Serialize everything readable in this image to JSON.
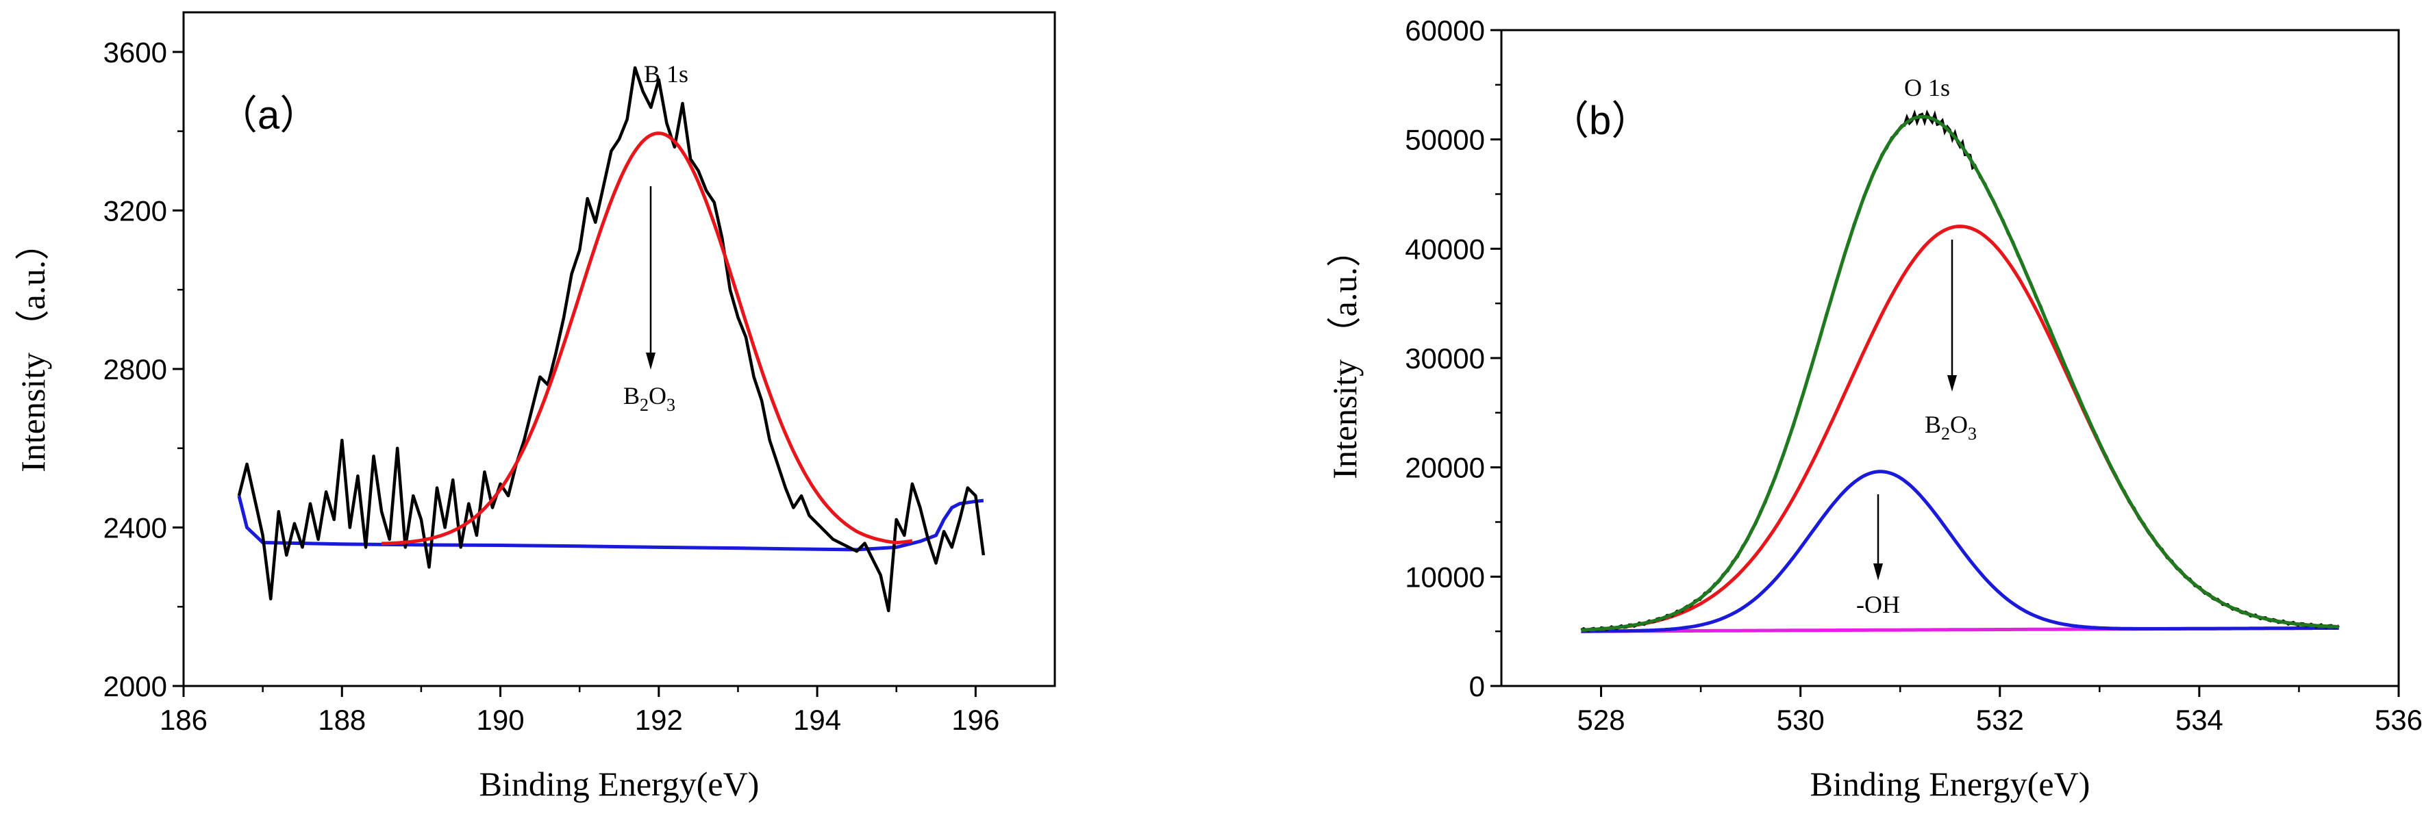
{
  "chart_data": [
    {
      "type": "line",
      "panel_label": "（a）",
      "xlabel": "Binding Energy(eV)",
      "ylabel": "Intensity （a.u.）",
      "xlim": [
        186,
        197
      ],
      "ylim": [
        2000,
        3700
      ],
      "x_ticks": [
        "186",
        "188",
        "190",
        "192",
        "194",
        "196"
      ],
      "y_ticks": [
        "2000",
        "2400",
        "2800",
        "3200",
        "3600"
      ],
      "grid": false,
      "series": [
        {
          "role": "raw",
          "color": "#000000",
          "x": [
            186.7,
            186.8,
            186.9,
            187.0,
            187.1,
            187.2,
            187.3,
            187.4,
            187.5,
            187.6,
            187.7,
            187.8,
            187.9,
            188.0,
            188.1,
            188.2,
            188.3,
            188.4,
            188.5,
            188.6,
            188.7,
            188.8,
            188.9,
            189.0,
            189.1,
            189.2,
            189.3,
            189.4,
            189.5,
            189.6,
            189.7,
            189.8,
            189.9,
            190.0,
            190.1,
            190.2,
            190.3,
            190.4,
            190.5,
            190.6,
            190.7,
            190.8,
            190.9,
            191.0,
            191.1,
            191.2,
            191.3,
            191.4,
            191.5,
            191.6,
            191.7,
            191.8,
            191.9,
            192.0,
            192.1,
            192.2,
            192.3,
            192.4,
            192.5,
            192.6,
            192.7,
            192.8,
            192.9,
            193.0,
            193.1,
            193.2,
            193.3,
            193.4,
            193.5,
            193.6,
            193.7,
            193.8,
            193.9,
            194.0,
            194.1,
            194.2,
            194.3,
            194.4,
            194.5,
            194.6,
            194.7,
            194.8,
            194.9,
            195.0,
            195.1,
            195.2,
            195.3,
            195.4,
            195.5,
            195.6,
            195.7,
            195.8,
            195.9,
            196.0,
            196.1
          ],
          "y": [
            2480,
            2560,
            2470,
            2380,
            2220,
            2440,
            2330,
            2410,
            2350,
            2460,
            2370,
            2490,
            2420,
            2620,
            2400,
            2530,
            2350,
            2580,
            2440,
            2370,
            2600,
            2350,
            2480,
            2420,
            2300,
            2500,
            2400,
            2520,
            2350,
            2460,
            2380,
            2540,
            2450,
            2510,
            2480,
            2560,
            2620,
            2700,
            2780,
            2760,
            2840,
            2930,
            3040,
            3100,
            3230,
            3170,
            3260,
            3350,
            3380,
            3430,
            3560,
            3500,
            3460,
            3530,
            3420,
            3360,
            3470,
            3330,
            3300,
            3250,
            3220,
            3130,
            3000,
            2930,
            2880,
            2780,
            2720,
            2620,
            2560,
            2500,
            2450,
            2480,
            2430,
            2410,
            2390,
            2370,
            2360,
            2350,
            2340,
            2360,
            2320,
            2280,
            2190,
            2420,
            2380,
            2510,
            2450,
            2370,
            2310,
            2390,
            2350,
            2420,
            2500,
            2480,
            2330
          ]
        },
        {
          "role": "fit",
          "color": "#e8161b",
          "gaussian": {
            "center": 192.0,
            "sigma": 1.0,
            "amplitude": 1045
          },
          "x_range": [
            188.5,
            195.2
          ]
        },
        {
          "role": "background",
          "color": "#1a1adb",
          "x": [
            186.7,
            186.8,
            187.0,
            187.5,
            188.0,
            189.0,
            190.0,
            191.0,
            192.0,
            193.0,
            194.0,
            194.5,
            195.0,
            195.3,
            195.5,
            195.6,
            195.7,
            195.8,
            196.0,
            196.1
          ],
          "y": [
            2480,
            2400,
            2362,
            2360,
            2358,
            2356,
            2355,
            2353,
            2350,
            2348,
            2345,
            2344,
            2350,
            2365,
            2380,
            2420,
            2450,
            2460,
            2466,
            2468
          ]
        }
      ],
      "annotations": {
        "peak": "B 1s",
        "species": "B2O3"
      }
    },
    {
      "type": "line",
      "panel_label": "（b）",
      "xlabel": "Binding Energy(eV)",
      "ylabel": "Intensity （a.u.）",
      "xlim": [
        527,
        536
      ],
      "ylim": [
        0,
        60000
      ],
      "x_ticks": [
        "528",
        "530",
        "532",
        "534",
        "536"
      ],
      "y_ticks": [
        "0",
        "10000",
        "20000",
        "30000",
        "40000",
        "50000",
        "60000"
      ],
      "grid": false,
      "series": [
        {
          "role": "envelope",
          "color": "#1f7a1f",
          "components": [
            "B2O3",
            "-OH"
          ],
          "x_range": [
            527.8,
            535.4
          ]
        },
        {
          "role": "component",
          "color": "#e8161b",
          "gaussian": {
            "center": 531.6,
            "sigma": 1.12,
            "amplitude": 36900
          },
          "x_range": [
            527.8,
            535.4
          ]
        },
        {
          "role": "component",
          "color": "#1a1adb",
          "gaussian": {
            "center": 530.8,
            "sigma": 0.7,
            "amplitude": 14500
          },
          "x_range": [
            527.8,
            535.4
          ]
        },
        {
          "role": "background",
          "color": "#e61ee6",
          "x": [
            527.8,
            535.4
          ],
          "y": [
            5000,
            5300
          ]
        }
      ],
      "annotations": {
        "peak": "O 1s",
        "species_1": "B2O3",
        "species_2": "-OH"
      }
    }
  ]
}
